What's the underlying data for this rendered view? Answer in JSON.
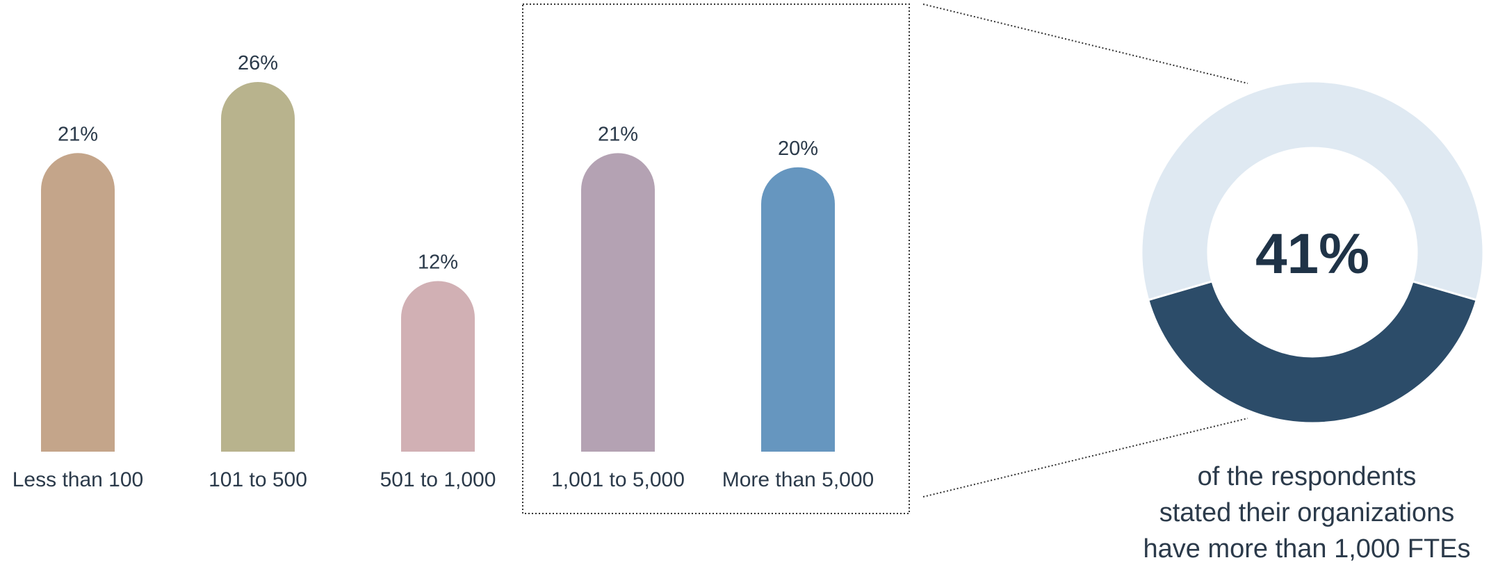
{
  "chart_data": [
    {
      "type": "bar",
      "categories": [
        "Less than 100",
        "101 to 500",
        "501 to 1,000",
        "1,001 to 5,000",
        "More than 5,000"
      ],
      "values": [
        21,
        26,
        12,
        21,
        20
      ],
      "value_labels": [
        "21%",
        "26%",
        "12%",
        "21%",
        "20%"
      ],
      "colors": [
        "#c4a58a",
        "#b8b38d",
        "#d1b0b4",
        "#b4a2b3",
        "#6696bf"
      ],
      "highlighted_categories": [
        "1,001 to 5,000",
        "More than 5,000"
      ],
      "ylim": [
        0,
        26
      ],
      "grid": false,
      "legend": "none"
    },
    {
      "type": "pie",
      "style": "donut",
      "slices": [
        {
          "value": 41,
          "color": "#2c4c69"
        },
        {
          "value": 59,
          "color": "#dfe9f2"
        }
      ],
      "center_label": "41%",
      "caption_lines": [
        "of the respondents",
        "stated their organizations",
        "have more than 1,000 FTEs"
      ]
    }
  ]
}
